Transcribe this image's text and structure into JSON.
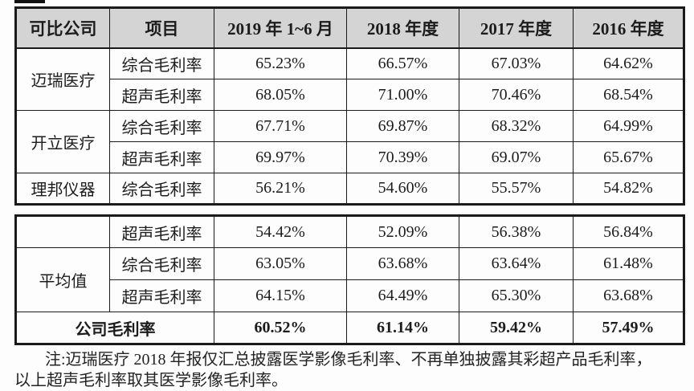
{
  "colors": {
    "header_bg": "#d4d4d4",
    "border": "#1a1a1a",
    "text": "#1c1c1c"
  },
  "table": {
    "columns": [
      "可比公司",
      "项目",
      "2019 年 1~6 月",
      "2018 年度",
      "2017 年度",
      "2016 年度"
    ],
    "part1": {
      "rows": [
        {
          "company": "迈瑞医疗",
          "item": "综合毛利率",
          "values": [
            "65.23%",
            "66.57%",
            "67.03%",
            "64.62%"
          ]
        },
        {
          "item": "超声毛利率",
          "values": [
            "68.05%",
            "71.00%",
            "70.46%",
            "68.54%"
          ]
        },
        {
          "company": "开立医疗",
          "item": "综合毛利率",
          "values": [
            "67.71%",
            "69.87%",
            "68.32%",
            "64.99%"
          ]
        },
        {
          "item": "超声毛利率",
          "values": [
            "69.97%",
            "70.39%",
            "69.07%",
            "65.67%"
          ]
        },
        {
          "company": "理邦仪器",
          "item": "综合毛利率",
          "values": [
            "56.21%",
            "54.60%",
            "55.57%",
            "54.82%"
          ]
        }
      ]
    },
    "part2": {
      "rows": [
        {
          "company": "",
          "item": "超声毛利率",
          "values": [
            "54.42%",
            "52.09%",
            "56.38%",
            "56.84%"
          ]
        },
        {
          "company": "平均值",
          "item": "综合毛利率",
          "values": [
            "63.05%",
            "63.68%",
            "63.64%",
            "61.48%"
          ]
        },
        {
          "item": "超声毛利率",
          "values": [
            "64.15%",
            "64.49%",
            "65.30%",
            "63.68%"
          ]
        }
      ],
      "summary": {
        "label": "公司毛利率",
        "values": [
          "60.52%",
          "61.14%",
          "59.42%",
          "57.49%"
        ]
      }
    }
  },
  "note": {
    "line1": "注:迈瑞医疗 2018 年报仅汇总披露医学影像毛利率、不再单独披露其彩超产品毛利率，",
    "line2": "以上超声毛利率取其医学影像毛利率。"
  }
}
